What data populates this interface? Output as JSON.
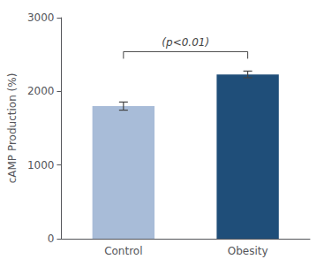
{
  "chart_data": {
    "type": "bar",
    "categories": [
      "Control",
      "Obesity"
    ],
    "values": [
      1800,
      2230
    ],
    "errors": [
      55,
      45
    ],
    "colors": [
      "#a8bcd8",
      "#1f4e79"
    ],
    "ylabel": "cAMP Production (%)",
    "ylim": [
      0,
      3000
    ],
    "yticks": [
      0,
      1000,
      2000,
      3000
    ],
    "annotation": "(p<0.01)",
    "grid": false
  }
}
